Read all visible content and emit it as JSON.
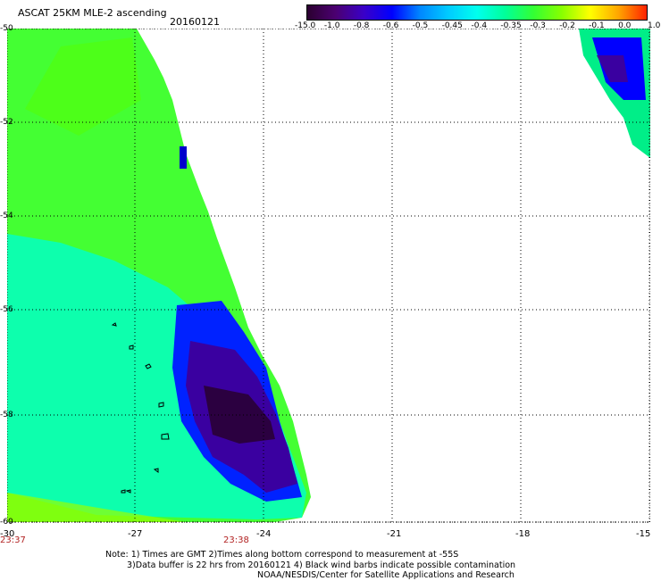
{
  "header": {
    "title": "ASCAT 25KM MLE-2 ascending",
    "date": "20160121"
  },
  "colorbar": {
    "labels": [
      "-15.0",
      "-1.0",
      "-0.8",
      "-0.6",
      "-0.5",
      "-0.45",
      "-0.4",
      "-0.35",
      "-0.3",
      "-0.2",
      "-0.1",
      "0.0",
      "1.0"
    ],
    "colors": [
      "#2b0030",
      "#4b0070",
      "#3a00c8",
      "#0000ff",
      "#0088ff",
      "#00ccff",
      "#00ffee",
      "#00ff99",
      "#33ff33",
      "#88ff00",
      "#ffff00",
      "#ffa500",
      "#ff2200"
    ]
  },
  "axes": {
    "lat_labels": [
      "-50",
      "-52",
      "-54",
      "-56",
      "-58",
      "-60"
    ],
    "lon_labels": [
      "-30",
      "-27",
      "-24",
      "-21",
      "-18",
      "-15"
    ],
    "time_labels": [
      "23:37",
      "23:38"
    ]
  },
  "notes": [
    "Note: 1) Times are GMT 2)Times along bottom correspond to measurement at -55S",
    "3)Data buffer is 22 hrs from 20160121 4) Black wind barbs indicate possible contamination",
    "NOAA/NESDIS/Center for Satellite Applications and Research"
  ]
}
